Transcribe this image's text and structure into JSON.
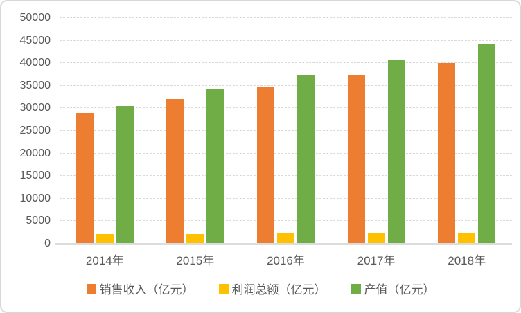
{
  "chart": {
    "background": "#FFFFFF",
    "border_color": "#D8D8D8",
    "text_color": "#595959",
    "gridline_color": "#D9D9D9",
    "axis_line_color": "#DCDCDC"
  },
  "chart_data": {
    "type": "bar",
    "title": "",
    "xlabel": "",
    "ylabel": "",
    "categories": [
      "2014年",
      "2015年",
      "2016年",
      "2017年",
      "2018年"
    ],
    "series": [
      {
        "name": "销售收入（亿元）",
        "color": "#ED7D31",
        "values": [
          29000,
          32100,
          34600,
          37300,
          40000
        ]
      },
      {
        "name": "利润总额（亿元）",
        "color": "#FFC000",
        "values": [
          2100,
          2150,
          2250,
          2300,
          2450
        ]
      },
      {
        "name": "产值（亿元）",
        "color": "#70AD47",
        "values": [
          30600,
          34400,
          37300,
          40800,
          44200
        ]
      }
    ],
    "ylim": [
      0,
      50000
    ],
    "y_tick_step": 5000,
    "y_ticks": [
      "0",
      "5000",
      "10000",
      "15000",
      "20000",
      "25000",
      "30000",
      "35000",
      "40000",
      "45000",
      "50000"
    ],
    "grid": true,
    "legend_position": "bottom"
  }
}
